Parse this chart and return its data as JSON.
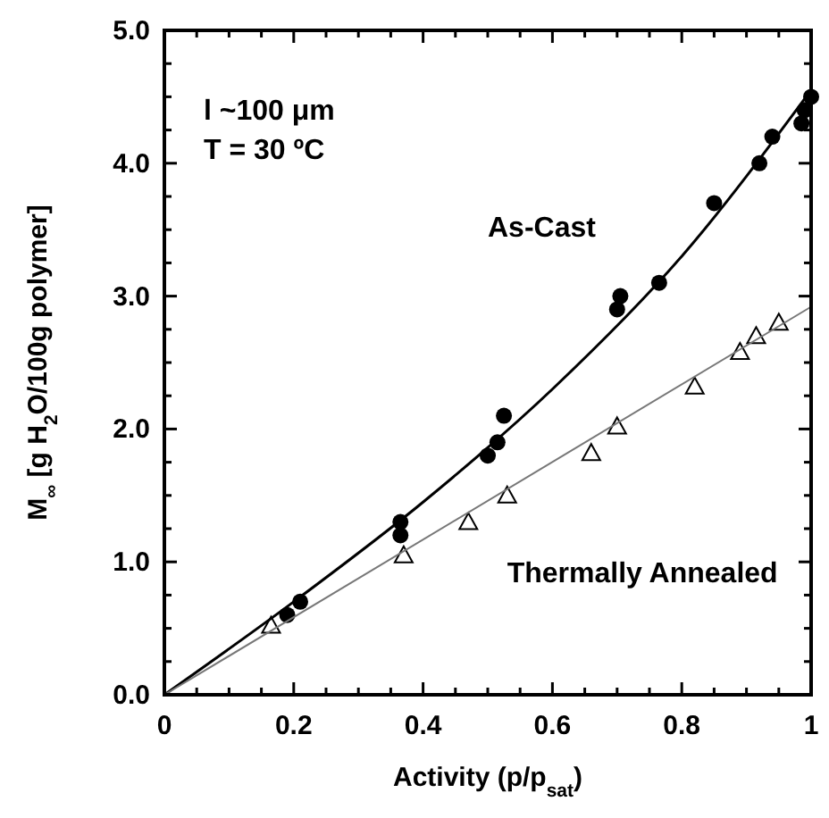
{
  "chart_data": {
    "type": "scatter",
    "xlabel": "Activity (p/p$_{sat}$)",
    "ylabel": "M$_{∞}$ [g H$_{2}$O/100g polymer]",
    "annotations": [
      "l ~100 μm",
      "T = 30 ºC"
    ],
    "xlim": [
      0,
      1
    ],
    "ylim": [
      0,
      5
    ],
    "xticks": [
      0,
      {
        "value": 0.05,
        "label": null
      },
      {
        "value": 0.1,
        "label": null
      },
      {
        "value": 0.15,
        "label": null
      },
      0.2,
      {
        "value": 0.25,
        "label": null
      },
      {
        "value": 0.3,
        "label": null
      },
      {
        "value": 0.35,
        "label": null
      },
      0.4,
      {
        "value": 0.45,
        "label": null
      },
      {
        "value": 0.5,
        "label": null
      },
      {
        "value": 0.55,
        "label": null
      },
      0.6,
      {
        "value": 0.65,
        "label": null
      },
      {
        "value": 0.7,
        "label": null
      },
      {
        "value": 0.75,
        "label": null
      },
      0.8,
      {
        "value": 0.85,
        "label": null
      },
      {
        "value": 0.9,
        "label": null
      },
      {
        "value": 0.95,
        "label": null
      },
      1
    ],
    "yticks": [
      {
        "value": 0,
        "label": "0.0"
      },
      {
        "value": 0.25,
        "label": null
      },
      {
        "value": 0.5,
        "label": null
      },
      {
        "value": 0.75,
        "label": null
      },
      {
        "value": 1,
        "label": "1.0"
      },
      {
        "value": 1.25,
        "label": null
      },
      {
        "value": 1.5,
        "label": null
      },
      {
        "value": 1.75,
        "label": null
      },
      {
        "value": 2,
        "label": "2.0"
      },
      {
        "value": 2.25,
        "label": null
      },
      {
        "value": 2.5,
        "label": null
      },
      {
        "value": 2.75,
        "label": null
      },
      {
        "value": 3,
        "label": "3.0"
      },
      {
        "value": 3.25,
        "label": null
      },
      {
        "value": 3.5,
        "label": null
      },
      {
        "value": 3.75,
        "label": null
      },
      {
        "value": 4,
        "label": "4.0"
      },
      {
        "value": 4.25,
        "label": null
      },
      {
        "value": 4.5,
        "label": null
      },
      {
        "value": 4.75,
        "label": null
      },
      {
        "value": 5,
        "label": "5.0"
      }
    ],
    "grid": false,
    "series": [
      {
        "name": "As-Cast",
        "color": "#000000",
        "marker": "circle",
        "x": [
          0.19,
          0.21,
          0.365,
          0.365,
          0.5,
          0.515,
          0.525,
          0.7,
          0.705,
          0.765,
          0.85,
          0.92,
          0.94,
          0.985,
          0.99,
          1.0
        ],
        "values": [
          0.6,
          0.7,
          1.2,
          1.3,
          1.8,
          1.9,
          2.1,
          2.9,
          3.0,
          3.1,
          3.7,
          4.0,
          4.2,
          4.3,
          4.4,
          4.5
        ]
      },
      {
        "name": "Thermally Annealed",
        "color": "#000000",
        "marker": "triangle",
        "x": [
          0.165,
          0.37,
          0.47,
          0.53,
          0.66,
          0.7,
          0.82,
          0.89,
          0.915,
          0.95
        ],
        "values": [
          0.52,
          1.05,
          1.3,
          1.5,
          1.82,
          2.02,
          2.32,
          2.58,
          2.7,
          2.8
        ]
      },
      {
        "type": "line",
        "color": "#000000",
        "line_style": "solid",
        "x": [
          0,
          0.2,
          0.4,
          0.6,
          0.8,
          1.0
        ],
        "values": [
          0,
          0.7,
          1.45,
          2.3,
          3.3,
          4.55
        ]
      },
      {
        "type": "line",
        "color": "#777777",
        "line_style": "solid",
        "x": [
          0,
          1.0
        ],
        "values": [
          0,
          2.92
        ]
      }
    ]
  }
}
